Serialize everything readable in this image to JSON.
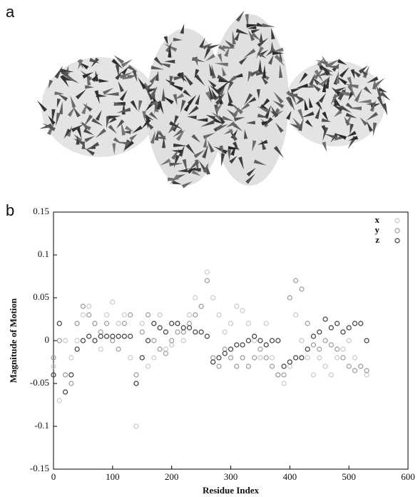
{
  "panel_a_label": "a",
  "chart_data": {
    "type": "scatter",
    "panel_label": "b",
    "xlabel": "Residue Index",
    "ylabel": "Magnitude of Motion",
    "x": [
      0,
      10,
      20,
      30,
      40,
      50,
      60,
      70,
      80,
      90,
      100,
      110,
      120,
      130,
      140,
      150,
      160,
      170,
      180,
      190,
      200,
      210,
      220,
      230,
      240,
      250,
      260,
      270,
      280,
      290,
      300,
      310,
      320,
      330,
      340,
      350,
      360,
      370,
      380,
      390,
      400,
      410,
      420,
      430,
      440,
      450,
      460,
      470,
      480,
      490,
      500,
      510,
      520,
      530
    ],
    "series": [
      {
        "name": "x",
        "color": "#c8c8c8",
        "values": [
          -0.03,
          -0.07,
          0.0,
          -0.02,
          0.0,
          0.03,
          0.04,
          0.02,
          -0.01,
          0.03,
          0.045,
          0.02,
          0.03,
          -0.02,
          -0.1,
          0.02,
          -0.03,
          -0.02,
          0.03,
          -0.01,
          -0.005,
          0.02,
          0.0,
          0.03,
          0.05,
          0.04,
          0.08,
          0.05,
          0.03,
          0.01,
          0.02,
          0.04,
          0.035,
          0.02,
          0.0,
          -0.02,
          0.02,
          -0.02,
          -0.04,
          -0.05,
          -0.03,
          0.03,
          0.0,
          -0.02,
          -0.04,
          -0.02,
          -0.03,
          -0.04,
          -0.02,
          -0.01,
          0.0,
          -0.02,
          -0.03,
          -0.04
        ]
      },
      {
        "name": "y",
        "color": "#9a9a9a",
        "values": [
          -0.02,
          0.0,
          -0.04,
          -0.05,
          0.02,
          0.04,
          0.03,
          0.02,
          0.01,
          0.02,
          0.0,
          -0.01,
          0.02,
          0.03,
          -0.04,
          0.01,
          0.03,
          0.0,
          -0.01,
          -0.015,
          0.0,
          0.01,
          0.01,
          0.02,
          0.03,
          0.04,
          0.07,
          -0.02,
          -0.03,
          -0.01,
          -0.02,
          -0.03,
          -0.02,
          -0.03,
          -0.02,
          -0.01,
          -0.02,
          -0.03,
          -0.04,
          -0.04,
          0.05,
          0.07,
          0.06,
          0.02,
          -0.005,
          -0.01,
          0.0,
          -0.005,
          -0.01,
          -0.02,
          -0.03,
          -0.035,
          -0.03,
          -0.035
        ]
      },
      {
        "name": "z",
        "color": "#3a3a3a",
        "values": [
          -0.04,
          0.02,
          -0.06,
          -0.04,
          -0.01,
          0.0,
          0.005,
          0.0,
          0.005,
          0.005,
          0.005,
          0.005,
          0.005,
          0.005,
          -0.05,
          -0.02,
          0.0,
          0.02,
          0.015,
          0.01,
          0.02,
          0.02,
          0.015,
          0.015,
          0.01,
          0.01,
          0.005,
          -0.025,
          -0.02,
          -0.015,
          -0.01,
          -0.005,
          -0.005,
          0.0,
          0.005,
          0.0,
          -0.005,
          0.0,
          0.0,
          -0.03,
          -0.025,
          -0.02,
          -0.02,
          -0.01,
          0.005,
          0.01,
          0.025,
          0.015,
          0.02,
          0.01,
          0.015,
          0.02,
          0.02,
          0.0
        ]
      }
    ],
    "xlim": [
      0,
      600
    ],
    "xticks": [
      0,
      100,
      200,
      300,
      400,
      500,
      600
    ],
    "ylim": [
      -0.15,
      0.15
    ],
    "yticks": [
      -0.15,
      -0.1,
      -0.05,
      0,
      0.05,
      0.1,
      0.15
    ],
    "legend": "upper-right"
  }
}
